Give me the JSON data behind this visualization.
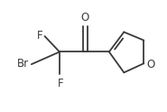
{
  "bg_color": "#ffffff",
  "bond_color": "#3a3a3a",
  "line_width": 1.3,
  "label_F1": "F",
  "label_F2": "F",
  "label_Br": "Br",
  "label_O_ketone": "O",
  "label_O_ring": "O",
  "figsize": [
    1.85,
    1.24
  ],
  "dpi": 100,
  "xlim": [
    0,
    10
  ],
  "ylim": [
    0,
    6.7
  ],
  "font_size": 8.5
}
